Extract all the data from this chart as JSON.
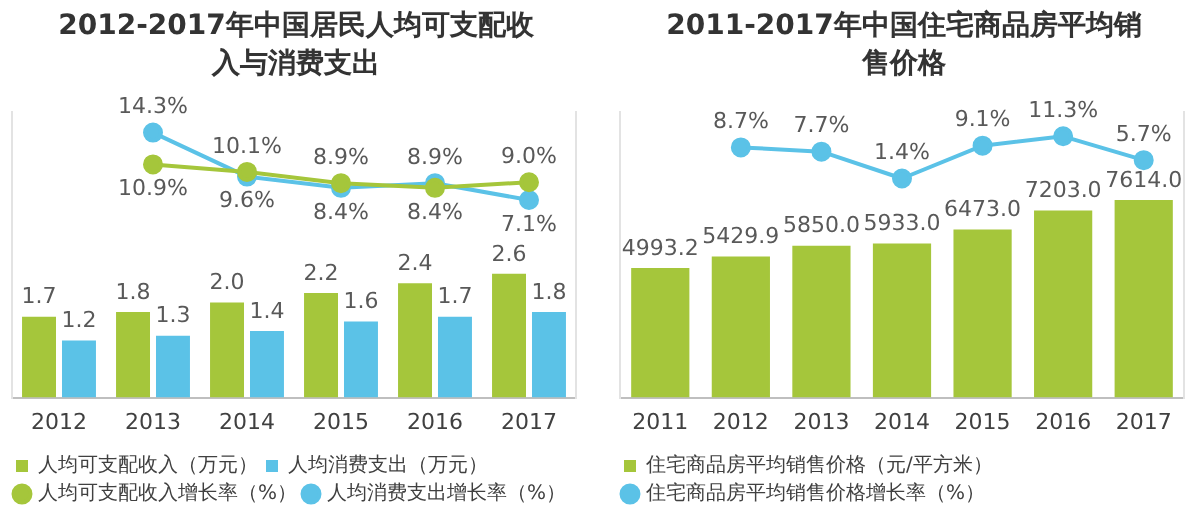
{
  "chart_data": [
    {
      "type": "bar",
      "title": "2012-2017年中国居民人均可支配收入与消费支出",
      "categories": [
        "2012",
        "2013",
        "2014",
        "2015",
        "2016",
        "2017"
      ],
      "series": [
        {
          "name": "人均可支配收入（万元）",
          "color": "#a5c63b",
          "values": [
            1.7,
            1.8,
            2.0,
            2.2,
            2.4,
            2.6
          ],
          "value_labels": [
            "1.7",
            "1.8",
            "2.0",
            "2.2",
            "2.4",
            "2.6"
          ]
        },
        {
          "name": "人均消费支出（万元）",
          "color": "#5bc2e7",
          "values": [
            1.2,
            1.3,
            1.4,
            1.6,
            1.7,
            1.8
          ],
          "value_labels": [
            "1.2",
            "1.3",
            "1.4",
            "1.6",
            "1.7",
            "1.8"
          ]
        },
        {
          "name": "人均可支配收入增长率（%）",
          "type": "line",
          "axis": "y2",
          "color": "#a5c63b",
          "values": [
            null,
            10.9,
            10.1,
            8.9,
            8.4,
            9.0
          ],
          "value_labels": [
            null,
            "10.9%",
            "10.1%",
            "8.9%",
            "8.4%",
            "9.0%"
          ]
        },
        {
          "name": "人均消费支出增长率（%）",
          "type": "line",
          "axis": "y2",
          "color": "#5bc2e7",
          "values": [
            null,
            14.3,
            9.6,
            8.4,
            8.9,
            7.1
          ],
          "value_labels": [
            null,
            "14.3%",
            "9.6%",
            "8.4%",
            "8.9%",
            "7.1%"
          ]
        }
      ],
      "ylim": [
        0,
        6
      ],
      "y2lim": [
        -14,
        16.5
      ],
      "tick_labels": "x",
      "grid": false,
      "legend": "bottom",
      "marker": "circle"
    },
    {
      "type": "bar",
      "title": "2011-2017年中国住宅商品房平均销售价格",
      "categories": [
        "2011",
        "2012",
        "2013",
        "2014",
        "2015",
        "2016",
        "2017"
      ],
      "series": [
        {
          "name": "住宅商品房平均销售价格（元/平方米）",
          "color": "#a5c63b",
          "values": [
            4993.2,
            5429.9,
            5850.0,
            5933.0,
            6473.0,
            7203.0,
            7614.0
          ],
          "value_labels": [
            "4993.2",
            "5429.9",
            "5850.0",
            "5933.0",
            "6473.0",
            "7203.0",
            "7614.0"
          ]
        },
        {
          "name": "住宅商品房平均销售价格增长率（%）",
          "type": "line",
          "axis": "y2",
          "color": "#5bc2e7",
          "values": [
            null,
            8.7,
            7.7,
            1.4,
            9.1,
            11.3,
            5.7
          ],
          "value_labels": [
            null,
            "8.7%",
            "7.7%",
            "1.4%",
            "9.1%",
            "11.3%",
            "5.7%"
          ]
        }
      ],
      "ylim": [
        0,
        11000
      ],
      "y2lim": [
        -50,
        17
      ],
      "tick_labels": "x",
      "grid": false,
      "legend": "bottom",
      "marker": "circle"
    }
  ]
}
